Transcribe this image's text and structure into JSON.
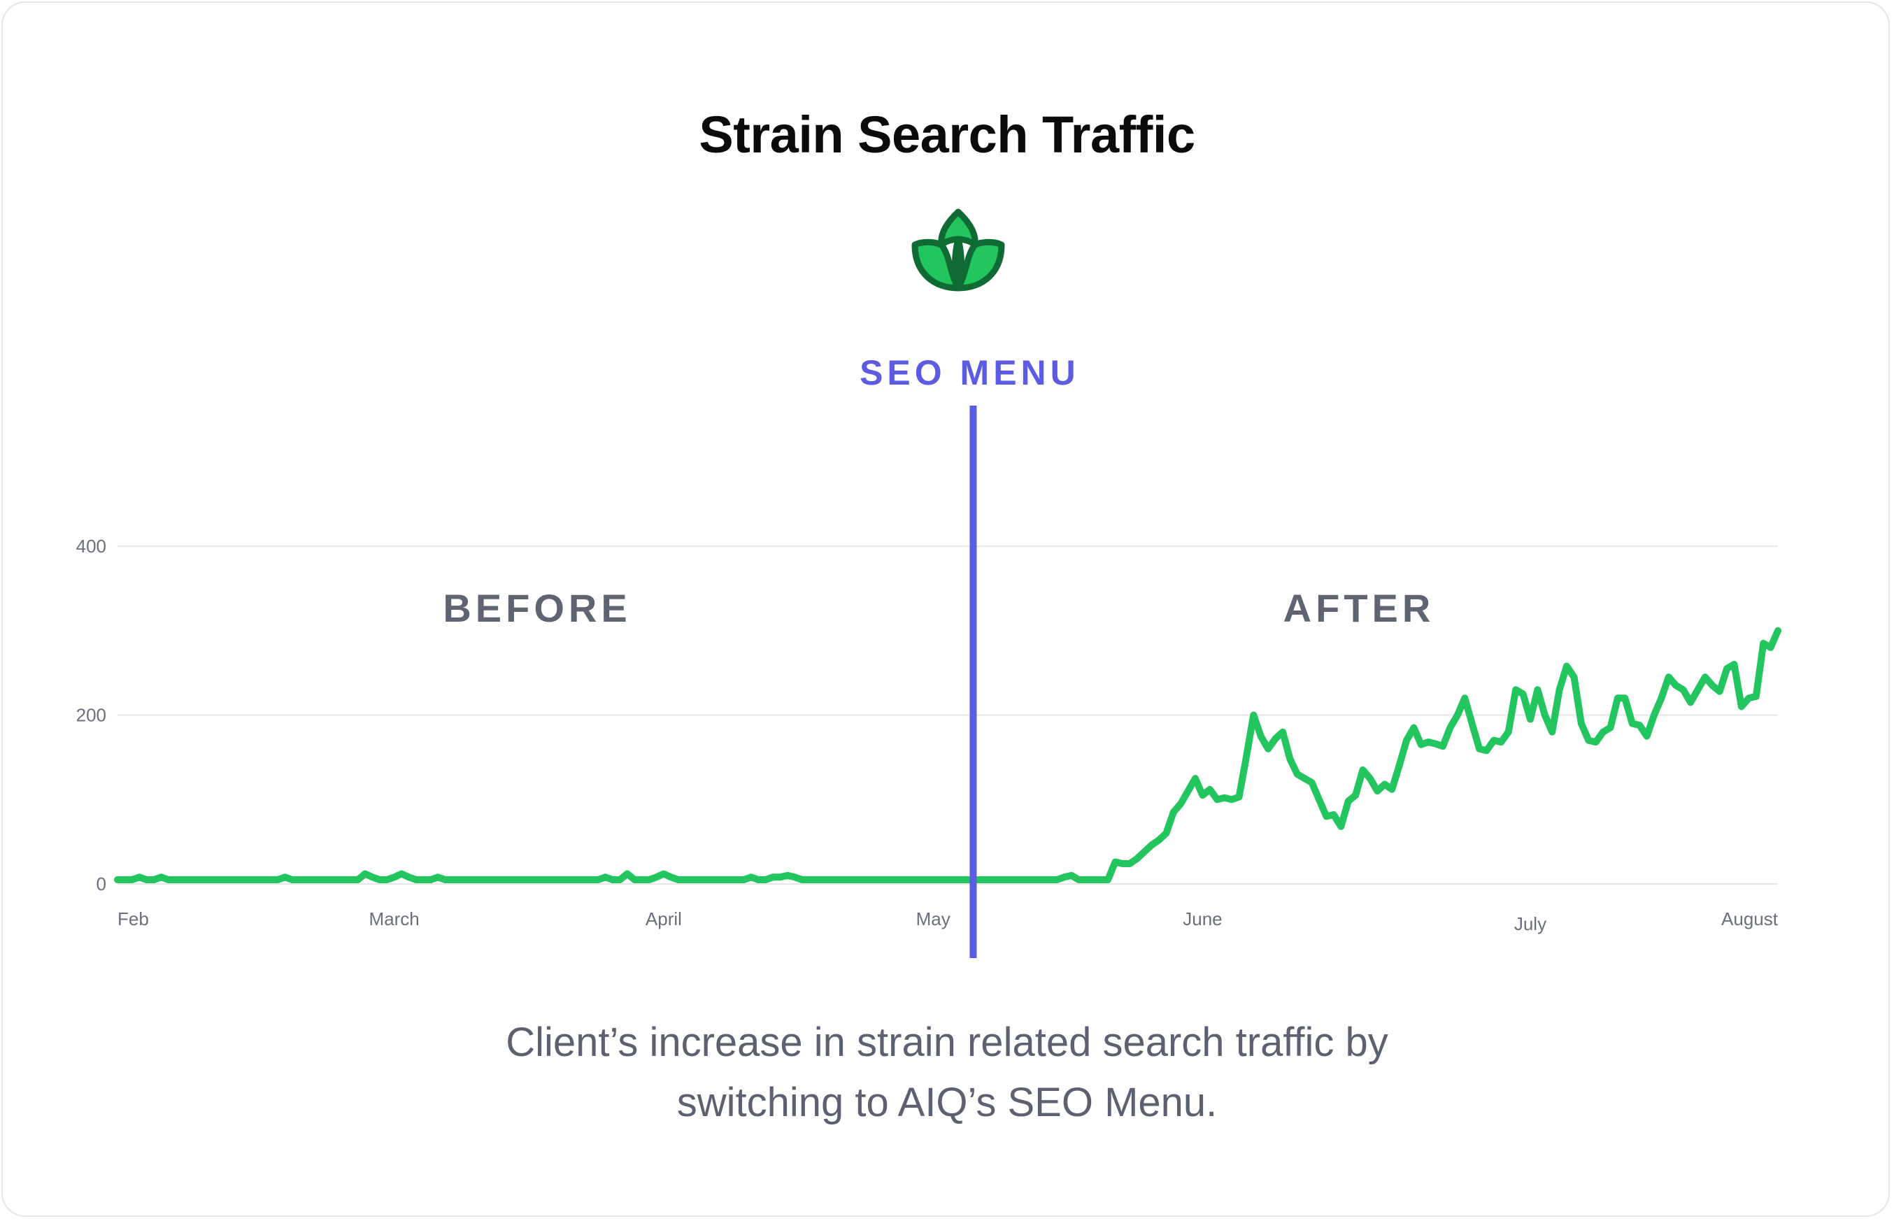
{
  "page": {
    "title": "Strain Search Traffic",
    "caption_line1": "Client’s increase in strain related search traffic by",
    "caption_line2": "switching to AIQ’s SEO Menu.",
    "logo_icon": "leaf-icon"
  },
  "colors": {
    "line": "#22c55e",
    "marker": "#5b5ce2",
    "grid": "#e6e6eb",
    "tick_label": "#6b6f7b",
    "region_label": "#5f6472",
    "logo_fill": "#22c55e",
    "logo_stroke": "#0f6b33"
  },
  "chart_data": {
    "type": "line",
    "title": "Strain Search Traffic",
    "xlabel": "",
    "ylabel": "",
    "ylim": [
      0,
      400
    ],
    "yticks": [
      0,
      200,
      400
    ],
    "grid": true,
    "x_tick_labels": [
      "Feb",
      "March",
      "April",
      "May",
      "June",
      "July",
      "August"
    ],
    "x_tick_positions": [
      1,
      38,
      75,
      112,
      149,
      194,
      230
    ],
    "marker": {
      "label": "SEO MENU",
      "x": 117.5
    },
    "region_labels": [
      "BEFORE",
      "AFTER"
    ],
    "series": [
      {
        "values": [
          5,
          5,
          5,
          8,
          5,
          5,
          8,
          5,
          5,
          5,
          5,
          5,
          5,
          5,
          5,
          5,
          5,
          5,
          5,
          5,
          5,
          5,
          5,
          8,
          5,
          5,
          5,
          5,
          5,
          5,
          5,
          5,
          5,
          5,
          12,
          8,
          5,
          5,
          8,
          12,
          8,
          5,
          5,
          5,
          8,
          5,
          5,
          5,
          5,
          5,
          5,
          5,
          5,
          5,
          5,
          5,
          5,
          5,
          5,
          5,
          5,
          5,
          5,
          5,
          5,
          5,
          5,
          8,
          5,
          5,
          12,
          5,
          5,
          5,
          8,
          12,
          8,
          5,
          5,
          5,
          5,
          5,
          5,
          5,
          5,
          5,
          5,
          8,
          5,
          5,
          8,
          8,
          10,
          8,
          5,
          5,
          5,
          5,
          5,
          5,
          5,
          5,
          5,
          5,
          5,
          5,
          5,
          5,
          5,
          5,
          5,
          5,
          5,
          5,
          5,
          5,
          5,
          5,
          5,
          5,
          5,
          5,
          5,
          5,
          5,
          5,
          5,
          5,
          5,
          5,
          8,
          10,
          5,
          5,
          5,
          5,
          5,
          26,
          24,
          24,
          30,
          38,
          46,
          52,
          60,
          85,
          95,
          110,
          125,
          105,
          112,
          100,
          102,
          100,
          103,
          150,
          200,
          175,
          160,
          172,
          180,
          148,
          130,
          125,
          120,
          100,
          80,
          82,
          68,
          98,
          105,
          135,
          125,
          110,
          118,
          112,
          140,
          170,
          185,
          165,
          168,
          166,
          163,
          185,
          200,
          220,
          190,
          160,
          158,
          170,
          168,
          180,
          230,
          225,
          195,
          230,
          200,
          180,
          230,
          258,
          245,
          190,
          170,
          168,
          180,
          185,
          220,
          220,
          190,
          188,
          175,
          200,
          220,
          245,
          235,
          230,
          215,
          230,
          245,
          235,
          228,
          255,
          260,
          210,
          220,
          222,
          285,
          280,
          300
        ]
      }
    ]
  }
}
